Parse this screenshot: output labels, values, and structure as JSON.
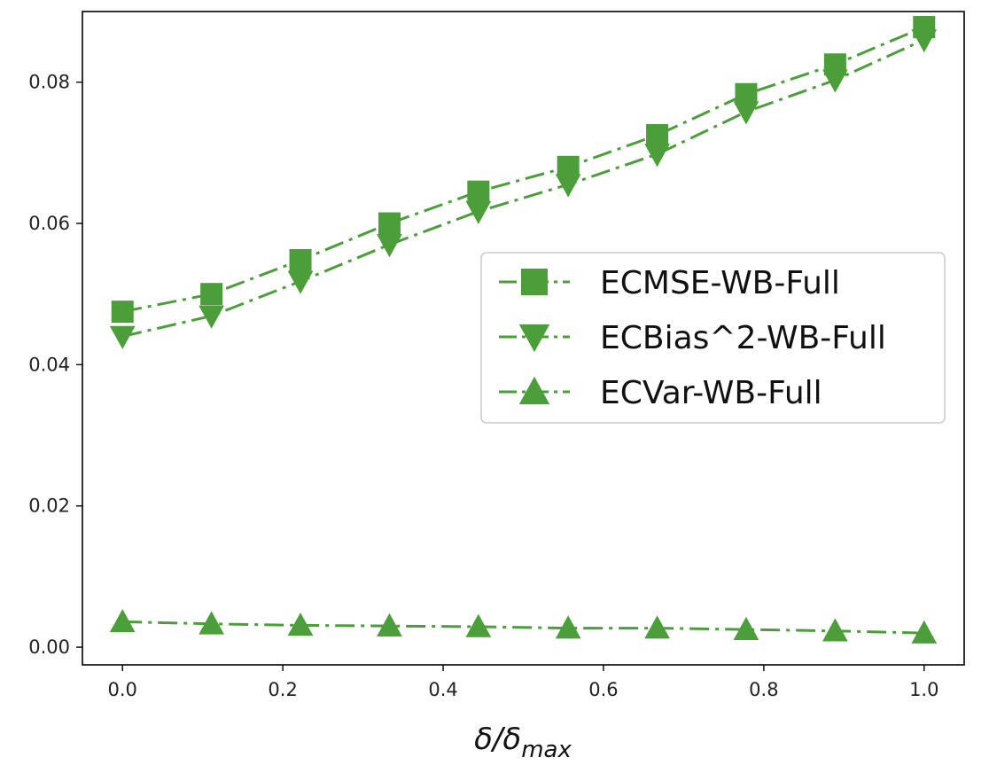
{
  "chart_data": {
    "type": "line",
    "title": "",
    "xlabel": "δ/δ",
    "xlabel_sub": "max",
    "ylabel": "",
    "xlim": [
      -0.05,
      1.05
    ],
    "ylim": [
      -0.0025,
      0.09
    ],
    "x": [
      0.0,
      0.111,
      0.222,
      0.333,
      0.444,
      0.556,
      0.667,
      0.778,
      0.889,
      1.0
    ],
    "x_ticks": [
      0.0,
      0.2,
      0.4,
      0.6,
      0.8,
      1.0
    ],
    "x_tick_labels": [
      "0.0",
      "0.2",
      "0.4",
      "0.6",
      "0.8",
      "1.0"
    ],
    "y_ticks": [
      0.0,
      0.02,
      0.04,
      0.06,
      0.08
    ],
    "y_tick_labels": [
      "0.00",
      "0.02",
      "0.04",
      "0.06",
      "0.08"
    ],
    "grid": false,
    "legend_position": "center-right",
    "series": [
      {
        "name": "ECMSE-WB-Full",
        "marker": "square",
        "linestyle": "dashdot",
        "color": "#4c9e3b",
        "values": [
          0.0475,
          0.05,
          0.0548,
          0.06,
          0.0645,
          0.068,
          0.0725,
          0.0783,
          0.0825,
          0.0878
        ]
      },
      {
        "name": "ECBias^2-WB-Full",
        "marker": "triangle-down",
        "linestyle": "dashdot",
        "color": "#4c9e3b",
        "values": [
          0.044,
          0.0469,
          0.0518,
          0.057,
          0.0617,
          0.0655,
          0.0698,
          0.0758,
          0.0803,
          0.086
        ]
      },
      {
        "name": "ECVar-WB-Full",
        "marker": "triangle-up",
        "linestyle": "dashdot",
        "color": "#4c9e3b",
        "values": [
          0.0036,
          0.0033,
          0.0031,
          0.003,
          0.0029,
          0.0027,
          0.0027,
          0.0025,
          0.0023,
          0.002
        ]
      }
    ]
  }
}
